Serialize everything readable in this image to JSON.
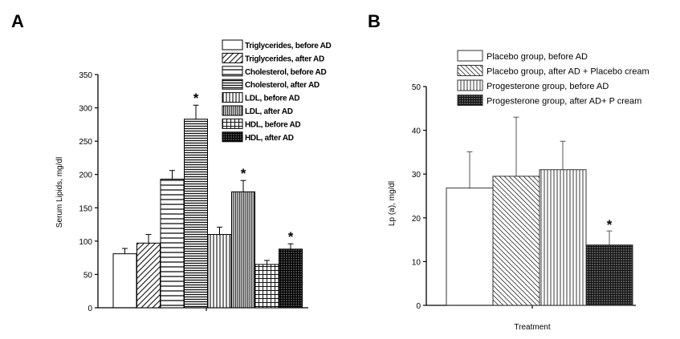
{
  "panel_a_letter": "A",
  "panel_b_letter": "B",
  "star": "*",
  "chart_data": [
    {
      "type": "bar",
      "panel": "A",
      "ylabel": "Serum Lipids, mg/dl",
      "xlabel": "",
      "ylim": [
        0,
        350
      ],
      "yticks": [
        0,
        50,
        100,
        150,
        200,
        250,
        300,
        350
      ],
      "legend_position": "top-right",
      "series": [
        {
          "name": "Triglycerides, before AD",
          "value": 81,
          "error": 8,
          "pattern": "blank",
          "significant": false
        },
        {
          "name": "Triglycerides, after AD",
          "value": 97,
          "error": 13,
          "pattern": "diag",
          "significant": false
        },
        {
          "name": "Cholesterol, before AD",
          "value": 193,
          "error": 13,
          "pattern": "hlines",
          "significant": false
        },
        {
          "name": "Cholesterol, after AD",
          "value": 283,
          "error": 21,
          "pattern": "hdense",
          "significant": true
        },
        {
          "name": "LDL, before AD",
          "value": 110,
          "error": 11,
          "pattern": "vlines",
          "significant": false
        },
        {
          "name": "LDL, after AD",
          "value": 174,
          "error": 17,
          "pattern": "vdense",
          "significant": true
        },
        {
          "name": "HDL, before AD",
          "value": 65,
          "error": 6,
          "pattern": "grid",
          "significant": false
        },
        {
          "name": "HDL, after AD",
          "value": 88,
          "error": 8,
          "pattern": "griddense",
          "significant": true
        }
      ]
    },
    {
      "type": "bar",
      "panel": "B",
      "ylabel": "Lp (a), mg/dl",
      "xlabel": "Treatment",
      "ylim": [
        0,
        50
      ],
      "yticks": [
        0,
        10,
        20,
        30,
        40,
        50
      ],
      "legend_position": "top",
      "series": [
        {
          "name": "Placebo group, before AD",
          "value": 26.8,
          "error": 8.3,
          "pattern": "blank",
          "significant": false
        },
        {
          "name": "Placebo group, after AD + Placebo cream",
          "value": 29.5,
          "error": 13.5,
          "pattern": "diagB",
          "significant": false
        },
        {
          "name": "Progesterone group, before AD",
          "value": 31,
          "error": 6.5,
          "pattern": "vlinesB",
          "significant": false
        },
        {
          "name": "Progesterone group, after AD+ P cream",
          "value": 13.8,
          "error": 3.2,
          "pattern": "griddenseB",
          "significant": true
        }
      ]
    }
  ]
}
